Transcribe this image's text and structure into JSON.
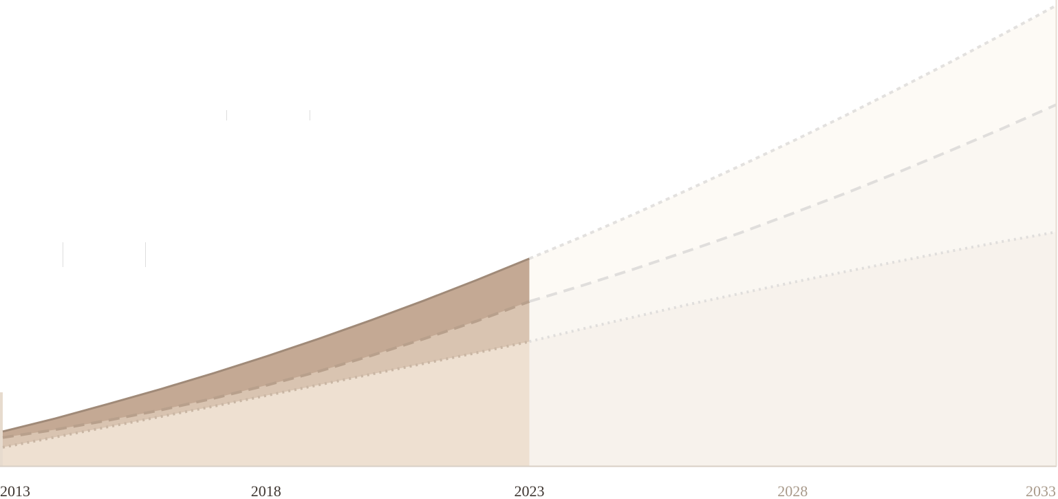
{
  "chart_data": {
    "type": "area",
    "x": [
      2013,
      2014,
      2015,
      2016,
      2017,
      2018,
      2019,
      2020,
      2021,
      2022,
      2023,
      2024,
      2025,
      2026,
      2027,
      2028,
      2029,
      2030,
      2031,
      2032,
      2033
    ],
    "xlim": [
      2013,
      2033
    ],
    "xticks": [
      2013,
      2018,
      2023,
      2028,
      2033
    ],
    "xtick_colors": [
      "#3d3530",
      "#3d3530",
      "#3d3530",
      "#a8998a",
      "#a8998a"
    ],
    "ylim": [
      0,
      100
    ],
    "series": [
      {
        "color": "#c4a994",
        "line_color": "#a08a78",
        "dash": "solid",
        "values": [
          7.4,
          10.2,
          13.3,
          16.5,
          19.9,
          23.5,
          27.3,
          31.3,
          35.5,
          39.9,
          44.5,
          null,
          null,
          null,
          null,
          null,
          null,
          null,
          null,
          null,
          null
        ]
      },
      {
        "color": "#d9c4b1",
        "line_color": "#b8a08c",
        "dash": "dashed",
        "values": [
          6.1,
          7.8,
          9.8,
          12.0,
          14.5,
          17.3,
          20.3,
          23.7,
          27.3,
          31.1,
          35.3,
          null,
          null,
          null,
          null,
          null,
          null,
          null,
          null,
          null,
          null
        ]
      },
      {
        "color": "#eee0d1",
        "line_color": "#c9b6a4",
        "dash": "dotted",
        "values": [
          4.0,
          6.2,
          8.4,
          10.6,
          12.8,
          15.1,
          17.4,
          19.7,
          22.0,
          24.3,
          26.7,
          null,
          null,
          null,
          null,
          null,
          null,
          null,
          null,
          null,
          null
        ]
      },
      {
        "color": "#fdfaf5",
        "line_color": "#e3e1df",
        "dash": "short",
        "values": [
          null,
          null,
          null,
          null,
          null,
          null,
          null,
          null,
          null,
          null,
          44.5,
          49.2,
          54.1,
          59.2,
          64.4,
          69.7,
          75.2,
          80.9,
          86.7,
          92.7,
          98.8
        ]
      },
      {
        "color": "#faf7f2",
        "line_color": "#e0dedc",
        "dash": "dashed",
        "values": [
          null,
          null,
          null,
          null,
          null,
          null,
          null,
          null,
          null,
          null,
          35.3,
          38.7,
          42.3,
          46.1,
          50.0,
          54.2,
          58.5,
          63.0,
          67.7,
          72.5,
          77.5
        ]
      },
      {
        "color": "#f7f2ec",
        "line_color": "#e0dedc",
        "dash": "dotted",
        "values": [
          null,
          null,
          null,
          null,
          null,
          null,
          null,
          null,
          null,
          null,
          26.7,
          29.4,
          32.0,
          34.6,
          37.0,
          39.4,
          41.7,
          43.9,
          46.1,
          48.2,
          50.2
        ]
      }
    ]
  }
}
